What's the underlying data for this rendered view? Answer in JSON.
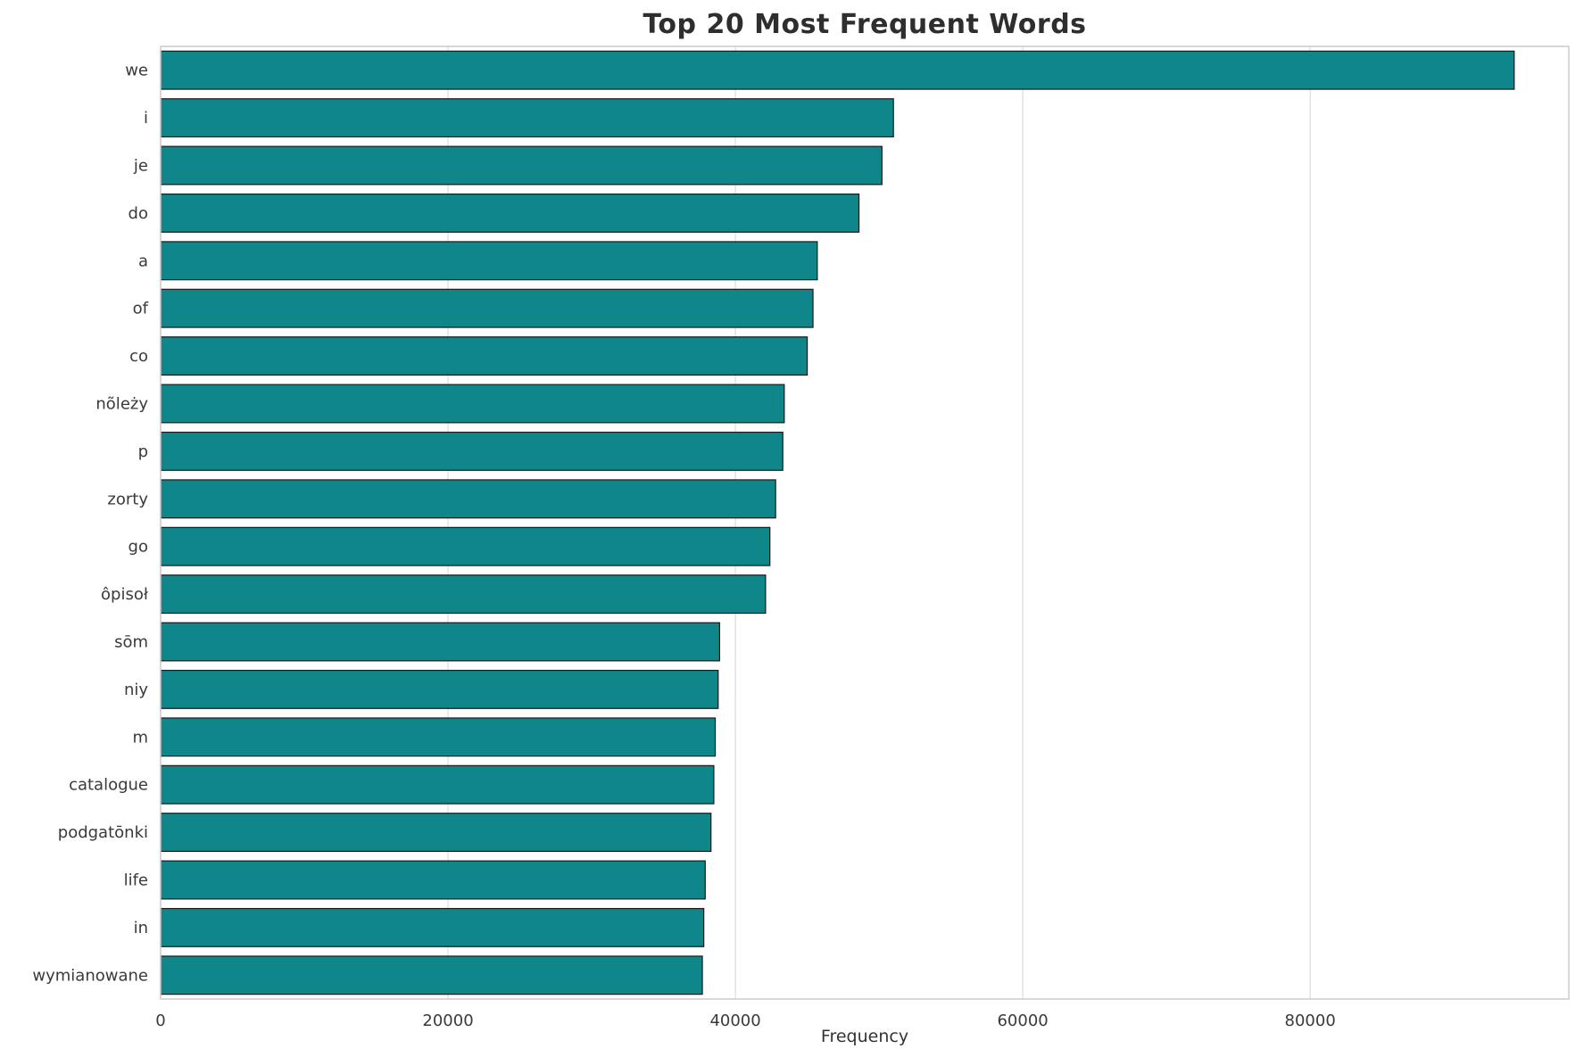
{
  "chart_data": {
    "type": "bar",
    "orientation": "horizontal",
    "title": "Top 20 Most Frequent Words",
    "xlabel": "Frequency",
    "ylabel": "",
    "categories": [
      "we",
      "i",
      "je",
      "do",
      "a",
      "of",
      "co",
      "nõleży",
      "p",
      "zorty",
      "go",
      "ôpisoł",
      "sōm",
      "niy",
      "m",
      "catalogue",
      "podgatōnki",
      "life",
      "in",
      "wymianowane"
    ],
    "values": [
      94200,
      51000,
      50200,
      48600,
      45700,
      45400,
      45000,
      43400,
      43300,
      42800,
      42400,
      42100,
      38900,
      38800,
      38600,
      38500,
      38300,
      37900,
      37800,
      37700
    ],
    "xlim": [
      0,
      98000
    ],
    "xticks": [
      0,
      20000,
      40000,
      60000,
      80000
    ],
    "xtick_labels": [
      "0",
      "20000",
      "40000",
      "60000",
      "80000"
    ],
    "legend": null,
    "grid": true,
    "grid_color": "#dcdcdc",
    "axis_border_color": "#cccccc",
    "bar_color": "#0f868a",
    "bar_edge_color": "#1a1a1a",
    "background": "#ffffff"
  }
}
